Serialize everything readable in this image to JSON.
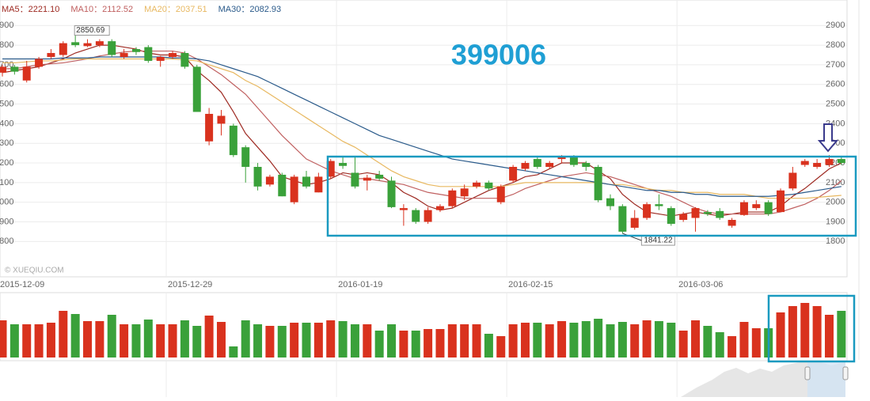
{
  "chart_data": {
    "type": "candlestick",
    "title": "399006",
    "watermark": "© XUEQIU.COM",
    "legend_separator": "：",
    "high_label": 2850.69,
    "low_label": 1841.22,
    "up_color": "#d9321e",
    "down_color": "#3aa13a",
    "grid": true,
    "x": [
      "2015-12-09",
      null,
      null,
      null,
      null,
      null,
      null,
      null,
      null,
      null,
      null,
      null,
      null,
      null,
      "2015-12-29",
      null,
      null,
      null,
      null,
      null,
      null,
      null,
      null,
      null,
      null,
      null,
      null,
      null,
      "2016-01-19",
      null,
      null,
      null,
      null,
      null,
      null,
      null,
      null,
      null,
      null,
      null,
      null,
      null,
      "2016-02-15",
      null,
      null,
      null,
      null,
      null,
      null,
      null,
      null,
      null,
      null,
      null,
      null,
      null,
      "2016-03-06",
      null,
      null,
      null,
      null,
      null,
      null,
      null,
      null,
      null,
      null,
      null,
      null,
      null
    ],
    "open": [
      2660,
      2690,
      2620,
      2690,
      2740,
      2750,
      2815,
      2795,
      2800,
      2820,
      2740,
      2780,
      2790,
      2720,
      2740,
      2760,
      2690,
      2310,
      2400,
      2390,
      2280,
      2180,
      2090,
      2140,
      2000,
      2130,
      2050,
      2130,
      2200,
      2150,
      2110,
      2140,
      2110,
      1960,
      1960,
      1900,
      1960,
      1980,
      2030,
      2080,
      2100,
      2000,
      2110,
      2170,
      2220,
      2180,
      2220,
      2230,
      2200,
      2180,
      2020,
      1980,
      1870,
      1920,
      1990,
      1970,
      1910,
      1920,
      1950,
      1955,
      1880,
      1935,
      1970,
      2000,
      1950,
      2070,
      2190,
      2180,
      2190,
      2220
    ],
    "high": [
      2700,
      2700,
      2720,
      2740,
      2780,
      2820,
      2850,
      2830,
      2830,
      2830,
      2780,
      2790,
      2800,
      2745,
      2770,
      2770,
      2700,
      2480,
      2470,
      2400,
      2290,
      2200,
      2140,
      2150,
      2140,
      2160,
      2150,
      2220,
      2230,
      2230,
      2140,
      2160,
      2130,
      1990,
      1970,
      1975,
      1990,
      2070,
      2090,
      2110,
      2110,
      2090,
      2190,
      2210,
      2230,
      2210,
      2240,
      2240,
      2210,
      2190,
      2040,
      1990,
      1960,
      2000,
      2040,
      1980,
      1950,
      1975,
      1960,
      1970,
      1920,
      2010,
      2010,
      2010,
      2070,
      2180,
      2220,
      2220,
      2240,
      2230
    ],
    "low": [
      2640,
      2650,
      2610,
      2680,
      2730,
      2740,
      2790,
      2790,
      2790,
      2740,
      2730,
      2750,
      2710,
      2690,
      2730,
      2680,
      2460,
      2290,
      2340,
      2230,
      2100,
      2060,
      2080,
      2030,
      1990,
      2070,
      2050,
      2120,
      2170,
      2070,
      2060,
      2110,
      1970,
      1880,
      1890,
      1890,
      1950,
      1970,
      2010,
      2070,
      2060,
      1990,
      2100,
      2160,
      2170,
      2170,
      2200,
      2180,
      2160,
      2000,
      1960,
      1841,
      1860,
      1910,
      1960,
      1880,
      1900,
      1850,
      1930,
      1910,
      1870,
      1930,
      1960,
      1930,
      1950,
      2060,
      2180,
      2170,
      2180,
      2190
    ],
    "close": [
      2690,
      2665,
      2690,
      2730,
      2760,
      2810,
      2800,
      2810,
      2820,
      2750,
      2760,
      2765,
      2720,
      2740,
      2760,
      2690,
      2460,
      2450,
      2440,
      2240,
      2180,
      2080,
      2130,
      2030,
      2130,
      2080,
      2130,
      2210,
      2185,
      2080,
      2125,
      2120,
      1975,
      1970,
      1900,
      1960,
      1980,
      2060,
      2070,
      2100,
      2070,
      2080,
      2180,
      2200,
      2180,
      2200,
      2230,
      2190,
      2180,
      2010,
      1980,
      1850,
      1920,
      1990,
      1980,
      1890,
      1940,
      1970,
      1940,
      1920,
      1910,
      2000,
      1990,
      1940,
      2060,
      2150,
      2210,
      2200,
      2220,
      2200
    ],
    "ylim": [
      1620,
      3030
    ],
    "yticks": [
      1800,
      1900,
      2000,
      2100,
      2200,
      2300,
      2400,
      2500,
      2600,
      2700,
      2800,
      2900
    ],
    "series": [
      {
        "name": "MA5",
        "legend_value": "2221.10",
        "color": "#9e2a22",
        "values": [
          2660,
          2670,
          2680,
          2690,
          2710,
          2730,
          2760,
          2780,
          2800,
          2800,
          2790,
          2780,
          2760,
          2750,
          2750,
          2740,
          2670,
          2620,
          2560,
          2460,
          2350,
          2280,
          2210,
          2130,
          2110,
          2090,
          2100,
          2120,
          2150,
          2140,
          2150,
          2140,
          2100,
          2050,
          2020,
          1980,
          1960,
          1970,
          2000,
          2030,
          2060,
          2080,
          2100,
          2130,
          2140,
          2170,
          2200,
          2200,
          2200,
          2160,
          2120,
          2040,
          1990,
          1950,
          1940,
          1930,
          1940,
          1950,
          1940,
          1930,
          1940,
          1950,
          1950,
          1950,
          1980,
          2030,
          2070,
          2120,
          2170,
          2200
        ]
      },
      {
        "name": "MA10",
        "legend_value": "2112.52",
        "color": "#c06060",
        "values": [
          2680,
          2680,
          2690,
          2700,
          2705,
          2710,
          2720,
          2730,
          2745,
          2755,
          2765,
          2770,
          2770,
          2770,
          2770,
          2760,
          2730,
          2690,
          2650,
          2600,
          2550,
          2480,
          2410,
          2340,
          2280,
          2220,
          2190,
          2160,
          2140,
          2120,
          2120,
          2110,
          2100,
          2090,
          2070,
          2050,
          2040,
          2030,
          2020,
          2020,
          2020,
          2020,
          2040,
          2070,
          2090,
          2110,
          2130,
          2140,
          2150,
          2140,
          2130,
          2110,
          2090,
          2070,
          2050,
          2030,
          2000,
          1970,
          1950,
          1940,
          1940,
          1940,
          1940,
          1940,
          1950,
          1970,
          1990,
          2020,
          2060,
          2110
        ]
      },
      {
        "name": "MA20",
        "legend_value": "2037.51",
        "color": "#e8b860",
        "values": [
          2710,
          2710,
          2715,
          2720,
          2720,
          2725,
          2730,
          2730,
          2730,
          2730,
          2730,
          2730,
          2730,
          2730,
          2730,
          2725,
          2720,
          2700,
          2680,
          2660,
          2620,
          2590,
          2550,
          2510,
          2470,
          2430,
          2390,
          2350,
          2310,
          2280,
          2240,
          2200,
          2160,
          2130,
          2110,
          2090,
          2080,
          2080,
          2080,
          2080,
          2080,
          2080,
          2090,
          2100,
          2100,
          2100,
          2100,
          2100,
          2100,
          2100,
          2090,
          2090,
          2080,
          2070,
          2060,
          2060,
          2050,
          2050,
          2050,
          2040,
          2040,
          2040,
          2030,
          2020,
          2020,
          2020,
          2020,
          2025,
          2030,
          2035
        ]
      },
      {
        "name": "MA30",
        "legend_value": "2082.93",
        "color": "#2a5a8a",
        "values": [
          2730,
          2730,
          2730,
          2730,
          2730,
          2735,
          2735,
          2735,
          2740,
          2740,
          2740,
          2740,
          2740,
          2740,
          2735,
          2735,
          2730,
          2720,
          2700,
          2680,
          2660,
          2640,
          2610,
          2580,
          2550,
          2520,
          2490,
          2460,
          2430,
          2400,
          2370,
          2340,
          2320,
          2300,
          2280,
          2260,
          2240,
          2220,
          2210,
          2200,
          2190,
          2180,
          2170,
          2160,
          2150,
          2140,
          2130,
          2120,
          2110,
          2100,
          2090,
          2080,
          2070,
          2060,
          2060,
          2050,
          2050,
          2040,
          2040,
          2030,
          2030,
          2030,
          2030,
          2030,
          2035,
          2040,
          2050,
          2060,
          2070,
          2080
        ]
      }
    ],
    "volume": {
      "vlim": [
        0,
        82
      ],
      "values": [
        47,
        42,
        42,
        42,
        44,
        59,
        55,
        46,
        46,
        54,
        42,
        42,
        48,
        42,
        42,
        47,
        40,
        53,
        45,
        14,
        47,
        42,
        40,
        40,
        44,
        44,
        44,
        47,
        46,
        42,
        42,
        34,
        42,
        34,
        34,
        36,
        36,
        42,
        42,
        42,
        30,
        27,
        42,
        44,
        44,
        42,
        46,
        44,
        46,
        49,
        42,
        45,
        42,
        47,
        46,
        44,
        34,
        47,
        40,
        32,
        27,
        45,
        37,
        37,
        57,
        65,
        69,
        65,
        54,
        59
      ]
    }
  }
}
